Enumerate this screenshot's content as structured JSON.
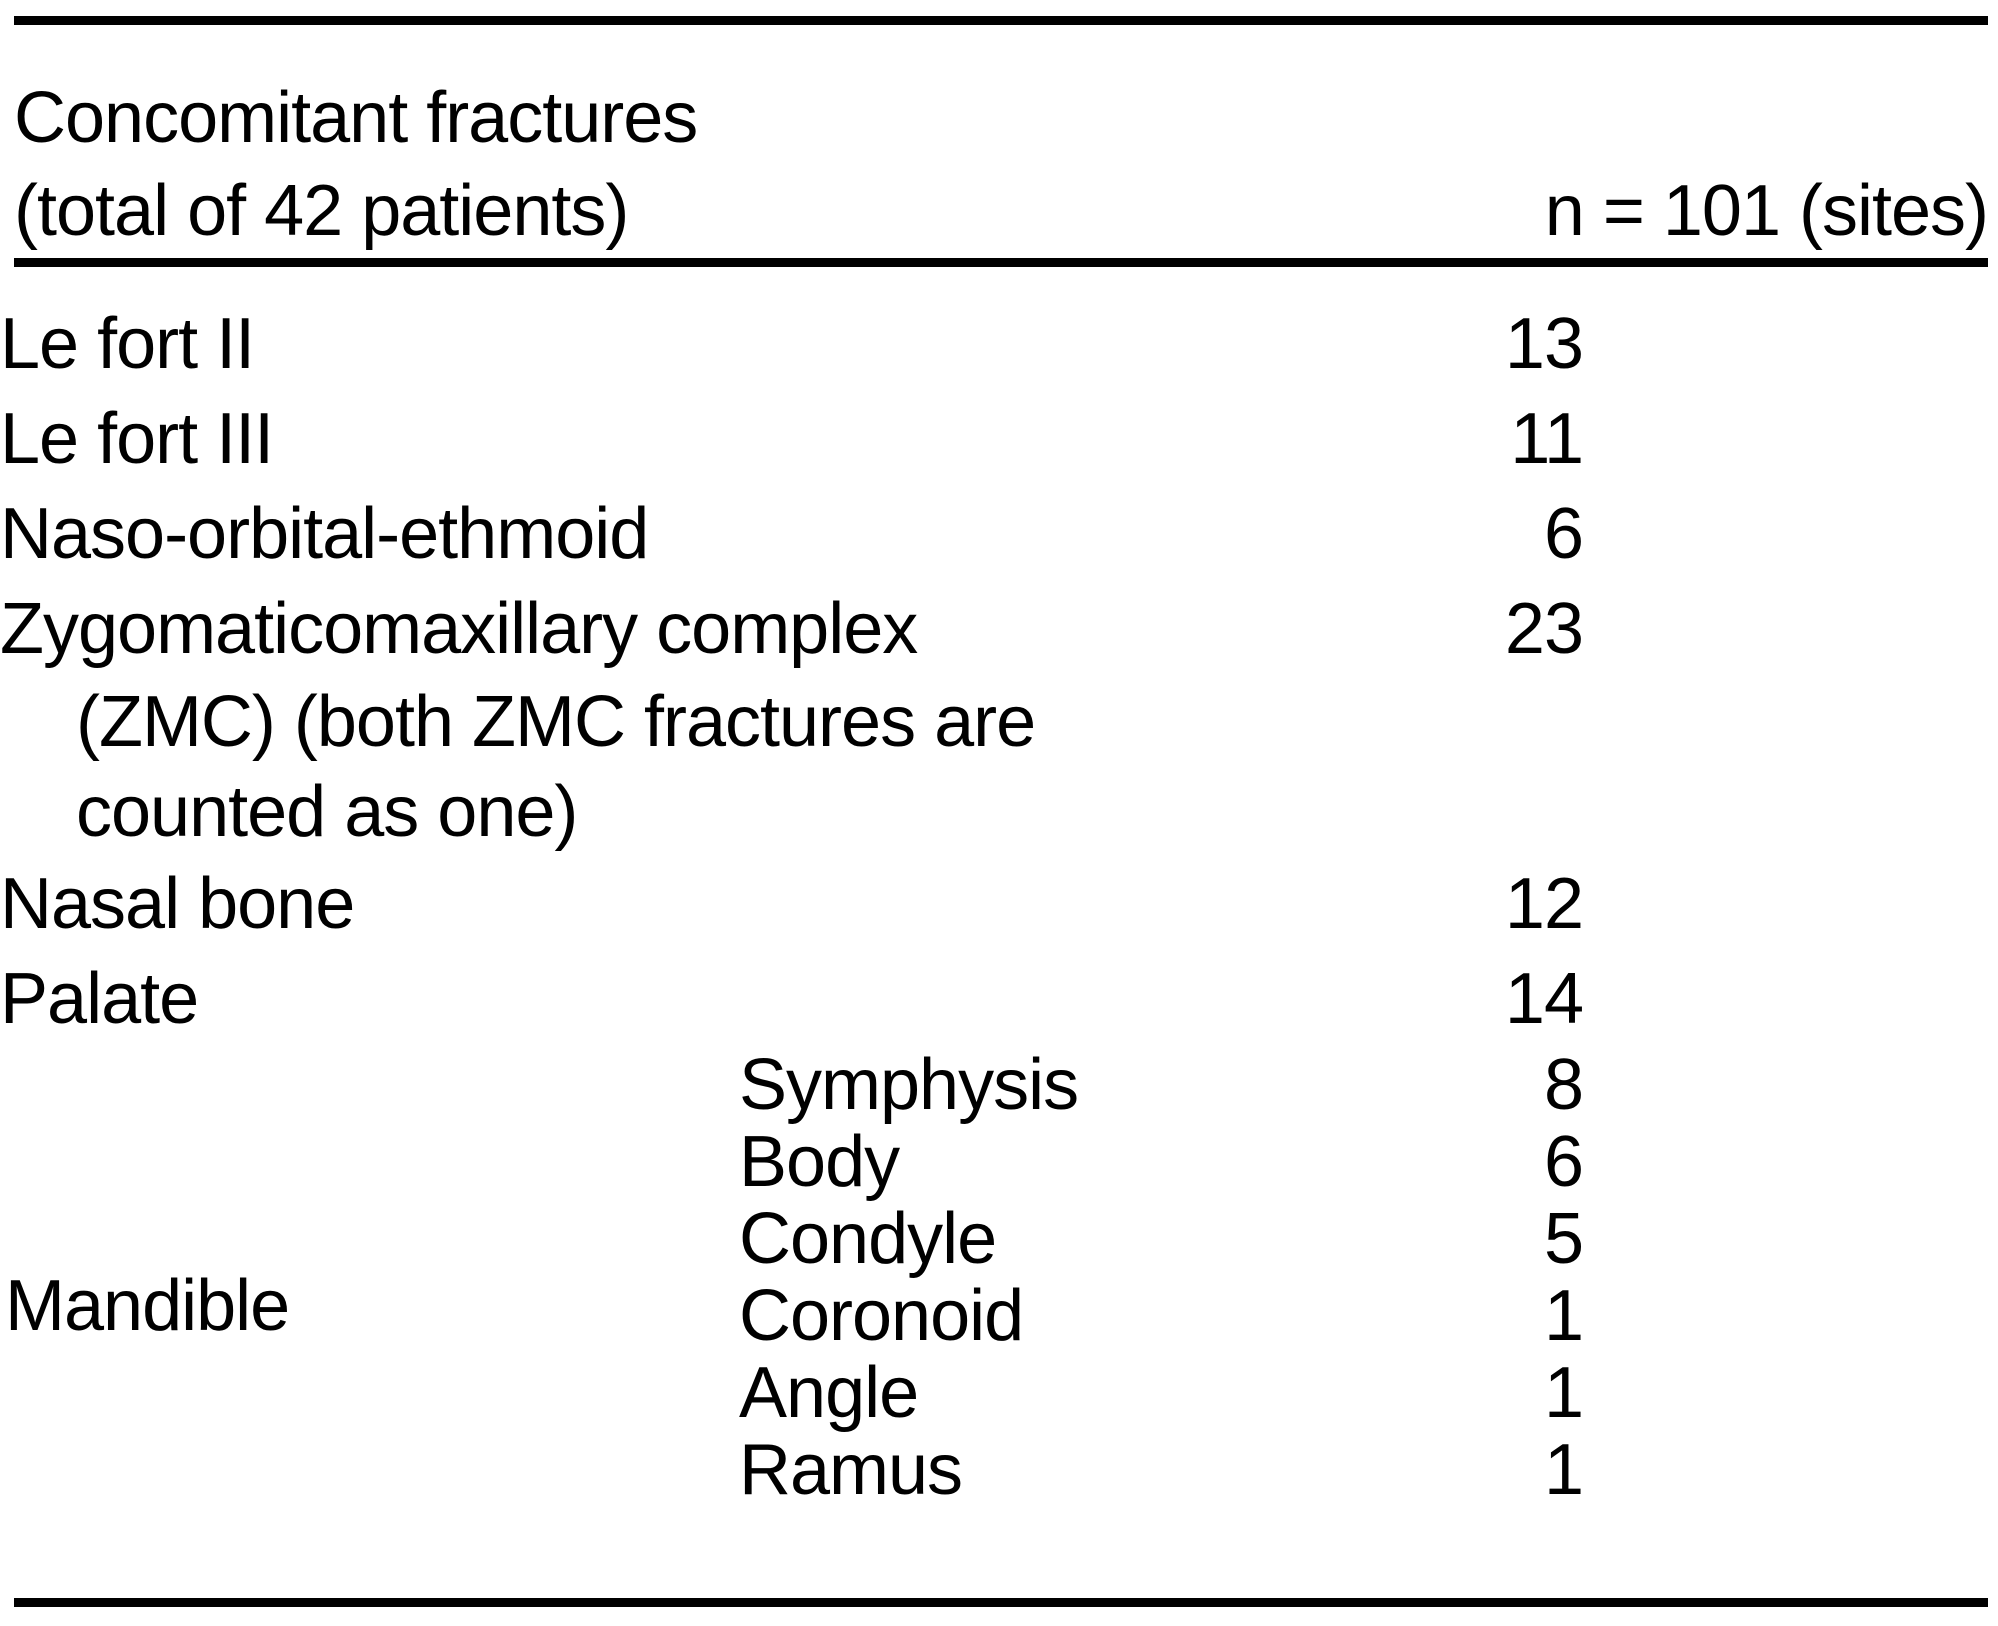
{
  "table": {
    "header": {
      "title_line1": "Concomitant fractures",
      "title_line2": "(total of 42 patients)",
      "count_label": "n = 101 (sites)"
    },
    "rows": [
      {
        "site": "Le fort II",
        "n": "13"
      },
      {
        "site": "Le fort III",
        "n": "11"
      },
      {
        "site": "Naso-orbital-ethmoid",
        "n": "6"
      },
      {
        "site_lines": [
          "Zygomaticomaxillary complex",
          "(ZMC) (both ZMC fractures are",
          "counted as one)"
        ],
        "n": "23"
      },
      {
        "site": "Nasal bone",
        "n": "12"
      },
      {
        "site": "Palate",
        "n": "14"
      }
    ],
    "group": {
      "label": "Mandible",
      "subrows": [
        {
          "site": "Symphysis",
          "n": "8"
        },
        {
          "site": "Body",
          "n": "6"
        },
        {
          "site": "Condyle",
          "n": "5"
        },
        {
          "site": "Coronoid",
          "n": "1"
        },
        {
          "site": "Angle",
          "n": "1"
        },
        {
          "site": "Ramus",
          "n": "1"
        }
      ]
    }
  },
  "chart_data": {
    "type": "table",
    "title": "Concomitant fractures (total of 42 patients)",
    "columns": [
      "Concomitant fractures (total of 42 patients)",
      "n = 101 (sites)"
    ],
    "rows": [
      [
        "Le fort II",
        13
      ],
      [
        "Le fort III",
        11
      ],
      [
        "Naso-orbital-ethmoid",
        6
      ],
      [
        "Zygomaticomaxillary complex (ZMC) (both ZMC fractures are counted as one)",
        23
      ],
      [
        "Nasal bone",
        12
      ],
      [
        "Palate",
        14
      ],
      [
        "Mandible - Symphysis",
        8
      ],
      [
        "Mandible - Body",
        6
      ],
      [
        "Mandible - Condyle",
        5
      ],
      [
        "Mandible - Coronoid",
        1
      ],
      [
        "Mandible - Angle",
        1
      ],
      [
        "Mandible - Ramus",
        1
      ]
    ]
  }
}
